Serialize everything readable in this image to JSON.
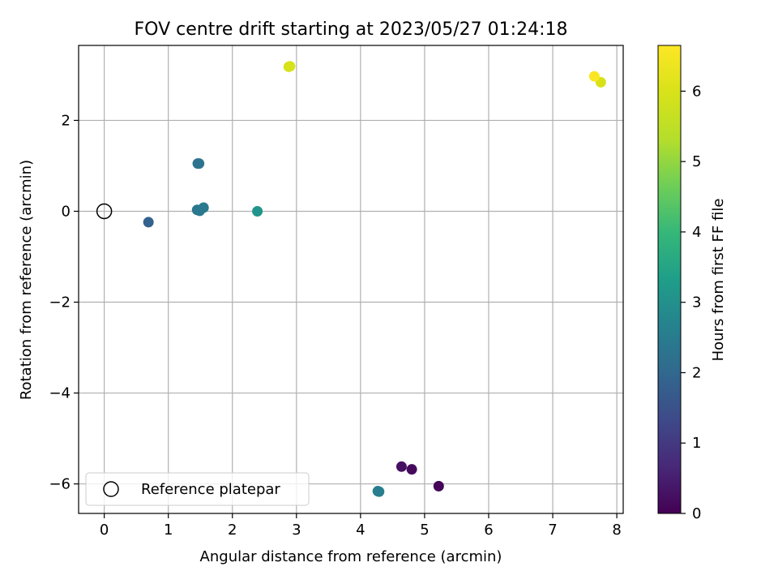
{
  "chart_data": {
    "type": "scatter",
    "title": "FOV centre drift starting at 2023/05/27 01:24:18",
    "xlabel": "Angular distance from reference (arcmin)",
    "ylabel": "Rotation from reference (arcmin)",
    "xlim": [
      -0.4,
      8.1
    ],
    "ylim": [
      -6.65,
      3.65
    ],
    "xticks": [
      0,
      1,
      2,
      3,
      4,
      5,
      6,
      7,
      8
    ],
    "yticks": [
      -6,
      -4,
      -2,
      0,
      2
    ],
    "xtick_labels": [
      "0",
      "1",
      "2",
      "3",
      "4",
      "5",
      "6",
      "7",
      "8"
    ],
    "ytick_labels": [
      "−6",
      "−4",
      "−2",
      "0",
      "2"
    ],
    "grid": true,
    "legend": {
      "placement": "lower-left",
      "entries": [
        "Reference platepar"
      ]
    },
    "colorbar": {
      "label": "Hours from first FF file",
      "colormap": "viridis",
      "range": [
        0,
        6.65
      ],
      "ticks": [
        0,
        1,
        2,
        3,
        4,
        5,
        6
      ],
      "tick_labels": [
        "0",
        "1",
        "2",
        "3",
        "4",
        "5",
        "6"
      ]
    },
    "reference": {
      "name": "Reference platepar",
      "x": 0,
      "y": 0
    },
    "points": [
      {
        "x": 5.22,
        "y": -6.05,
        "hours": 0.05
      },
      {
        "x": 4.8,
        "y": -5.68,
        "hours": 0.15
      },
      {
        "x": 4.64,
        "y": -5.62,
        "hours": 0.25
      },
      {
        "x": 0.69,
        "y": -0.24,
        "hours": 1.85
      },
      {
        "x": 1.46,
        "y": 1.05,
        "hours": 2.25
      },
      {
        "x": 1.48,
        "y": 1.05,
        "hours": 2.3
      },
      {
        "x": 1.45,
        "y": 0.03,
        "hours": 2.35
      },
      {
        "x": 1.49,
        "y": 0.01,
        "hours": 2.4
      },
      {
        "x": 1.55,
        "y": 0.08,
        "hours": 2.45
      },
      {
        "x": 4.27,
        "y": -6.16,
        "hours": 2.5
      },
      {
        "x": 4.29,
        "y": -6.17,
        "hours": 2.55
      },
      {
        "x": 2.39,
        "y": 0.0,
        "hours": 3.1
      },
      {
        "x": 2.88,
        "y": 3.18,
        "hours": 5.9
      },
      {
        "x": 2.9,
        "y": 3.19,
        "hours": 5.95
      },
      {
        "x": 7.75,
        "y": 2.84,
        "hours": 6.0
      },
      {
        "x": 7.65,
        "y": 2.97,
        "hours": 6.6
      }
    ]
  }
}
